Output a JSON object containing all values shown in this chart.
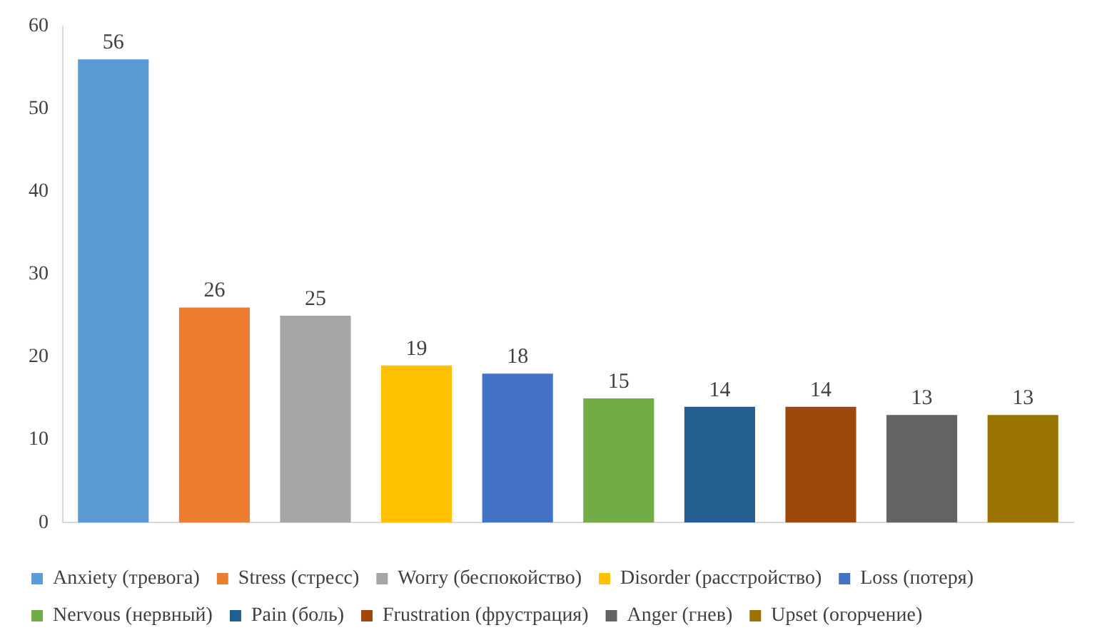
{
  "chart_data": {
    "type": "bar",
    "categories": [
      null,
      null,
      null,
      null,
      null,
      null,
      null,
      null,
      null,
      null
    ],
    "series": [
      {
        "name": "Anxiety (тревога)",
        "color": "#5b9bd5",
        "values": [
          56,
          null,
          null,
          null,
          null,
          null,
          null,
          null,
          null,
          null
        ]
      },
      {
        "name": "Stress (стресс)",
        "color": "#ed7d31",
        "values": [
          null,
          26,
          null,
          null,
          null,
          null,
          null,
          null,
          null,
          null
        ]
      },
      {
        "name": "Worry (беспокойство)",
        "color": "#a5a5a5",
        "values": [
          null,
          null,
          25,
          null,
          null,
          null,
          null,
          null,
          null,
          null
        ]
      },
      {
        "name": "Disorder (расстройство)",
        "color": "#ffc000",
        "values": [
          null,
          null,
          null,
          19,
          null,
          null,
          null,
          null,
          null,
          null
        ]
      },
      {
        "name": "Loss (потеря)",
        "color": "#4472c4",
        "values": [
          null,
          null,
          null,
          null,
          18,
          null,
          null,
          null,
          null,
          null
        ]
      },
      {
        "name": "Nervous (нервный)",
        "color": "#70ad47",
        "values": [
          null,
          null,
          null,
          null,
          null,
          15,
          null,
          null,
          null,
          null
        ]
      },
      {
        "name": "Pain (боль)",
        "color": "#255e91",
        "values": [
          null,
          null,
          null,
          null,
          null,
          null,
          14,
          null,
          null,
          null
        ]
      },
      {
        "name": "Frustration (фрустрация)",
        "color": "#9e480e",
        "values": [
          null,
          null,
          null,
          null,
          null,
          null,
          null,
          14,
          null,
          null
        ]
      },
      {
        "name": "Anger (гнев)",
        "color": "#636363",
        "values": [
          null,
          null,
          null,
          null,
          null,
          null,
          null,
          null,
          13,
          null
        ]
      },
      {
        "name": "Upset (огорчение)",
        "color": "#997300",
        "values": [
          null,
          null,
          null,
          null,
          null,
          null,
          null,
          null,
          null,
          13
        ]
      }
    ],
    "ylim": [
      0,
      60
    ],
    "yticks": [
      0,
      10,
      20,
      30,
      40,
      50,
      60
    ],
    "grid": false,
    "legend": "bottom",
    "data_labels": true
  }
}
